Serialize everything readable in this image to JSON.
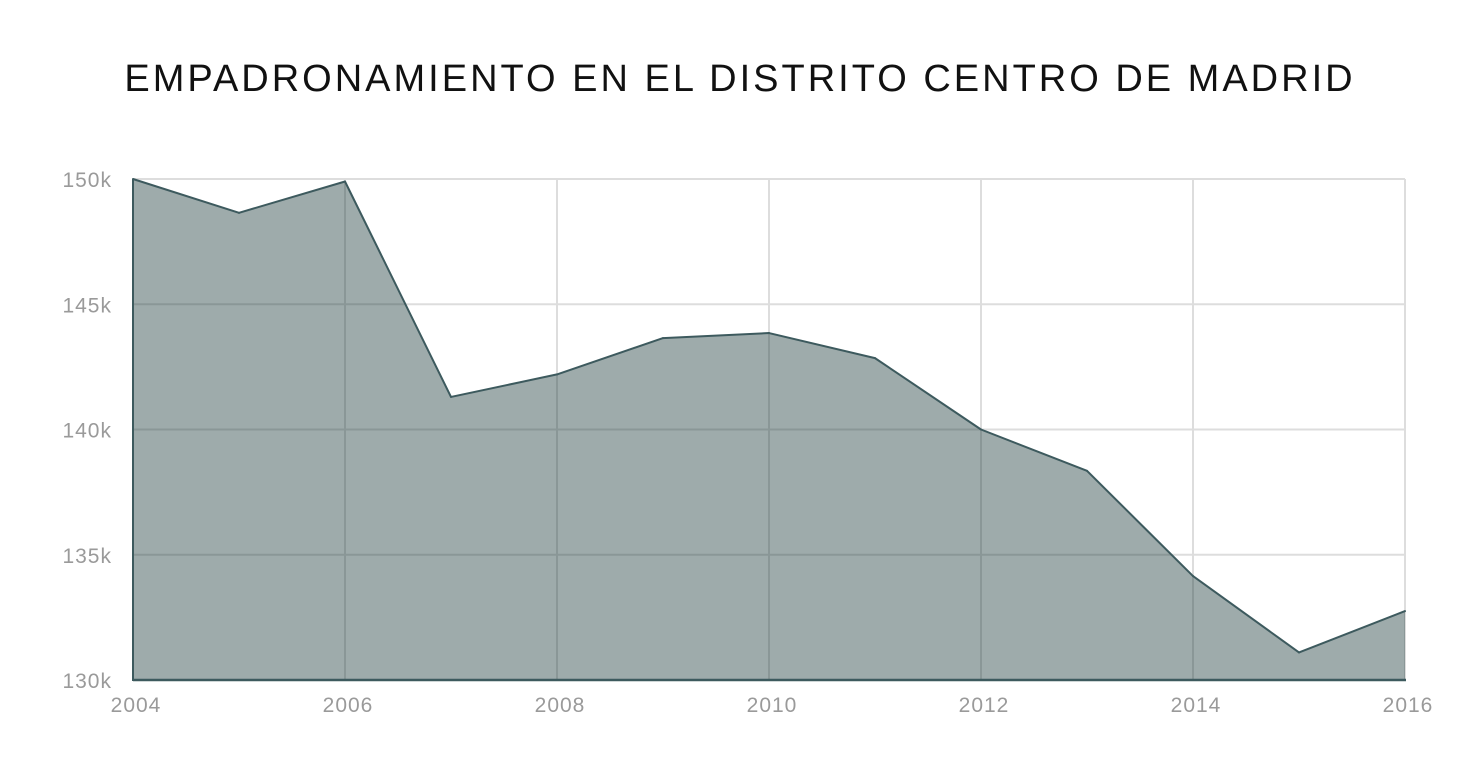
{
  "chart_data": {
    "type": "area",
    "title": "EMPADRONAMIENTO EN EL DISTRITO CENTRO DE MADRID",
    "xlabel": "",
    "ylabel": "",
    "x": [
      2004,
      2005,
      2006,
      2007,
      2008,
      2009,
      2010,
      2011,
      2012,
      2013,
      2014,
      2015,
      2016
    ],
    "series": [
      {
        "values": [
          150000,
          148650,
          149900,
          141300,
          142200,
          143650,
          143850,
          142850,
          140000,
          138350,
          134150,
          131100,
          132750
        ]
      }
    ],
    "xlim": [
      2004,
      2016
    ],
    "ylim": [
      130000,
      150000
    ],
    "x_ticks": [
      2004,
      2006,
      2008,
      2010,
      2012,
      2014,
      2016
    ],
    "x_tick_labels": [
      "2004",
      "2006",
      "2008",
      "2010",
      "2012",
      "2014",
      "2016"
    ],
    "y_ticks": [
      130000,
      135000,
      140000,
      145000,
      150000
    ],
    "y_tick_labels": [
      "130k",
      "135k",
      "140k",
      "145k",
      "150k"
    ],
    "grid": true,
    "legend": "none",
    "colors": {
      "area_fill": "#9eabab",
      "line": "#3d5a5e",
      "grid": "#dddddd",
      "grid_over_area": "#8a9797",
      "tick_text": "#9a9a9a",
      "title_text": "#111111"
    }
  }
}
